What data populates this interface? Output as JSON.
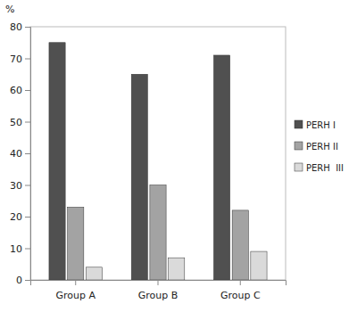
{
  "chart_data": {
    "type": "bar",
    "y_label": "%",
    "categories": [
      "Group A",
      "Group B",
      "Group C"
    ],
    "series": [
      {
        "name": "PERH I",
        "color": "#505050",
        "values": [
          75,
          65,
          71
        ]
      },
      {
        "name": "PERH II",
        "color": "#a3a3a3",
        "values": [
          23,
          30,
          22
        ]
      },
      {
        "name": "PERH  III",
        "color": "#dadada",
        "values": [
          4,
          7,
          9
        ]
      }
    ],
    "ylim": [
      0,
      80
    ],
    "yticks": [
      0,
      10,
      20,
      30,
      40,
      50,
      60,
      70,
      80
    ],
    "grid": false,
    "legend": "right"
  }
}
